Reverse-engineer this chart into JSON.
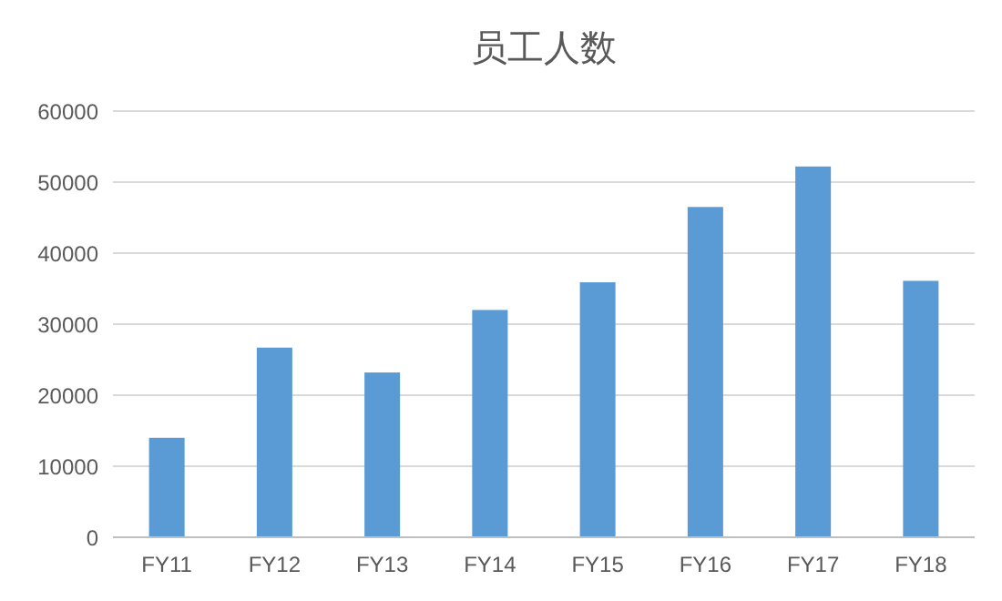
{
  "chart_data": {
    "type": "bar",
    "title": "员工人数",
    "categories": [
      "FY11",
      "FY12",
      "FY13",
      "FY14",
      "FY15",
      "FY16",
      "FY17",
      "FY18"
    ],
    "values": [
      14000,
      26700,
      23200,
      32000,
      35900,
      46500,
      52200,
      36100
    ],
    "color": "#5b9bd5",
    "ylim": [
      0,
      60000
    ],
    "yticks": [
      0,
      10000,
      20000,
      30000,
      40000,
      50000,
      60000
    ],
    "grid": "y"
  }
}
